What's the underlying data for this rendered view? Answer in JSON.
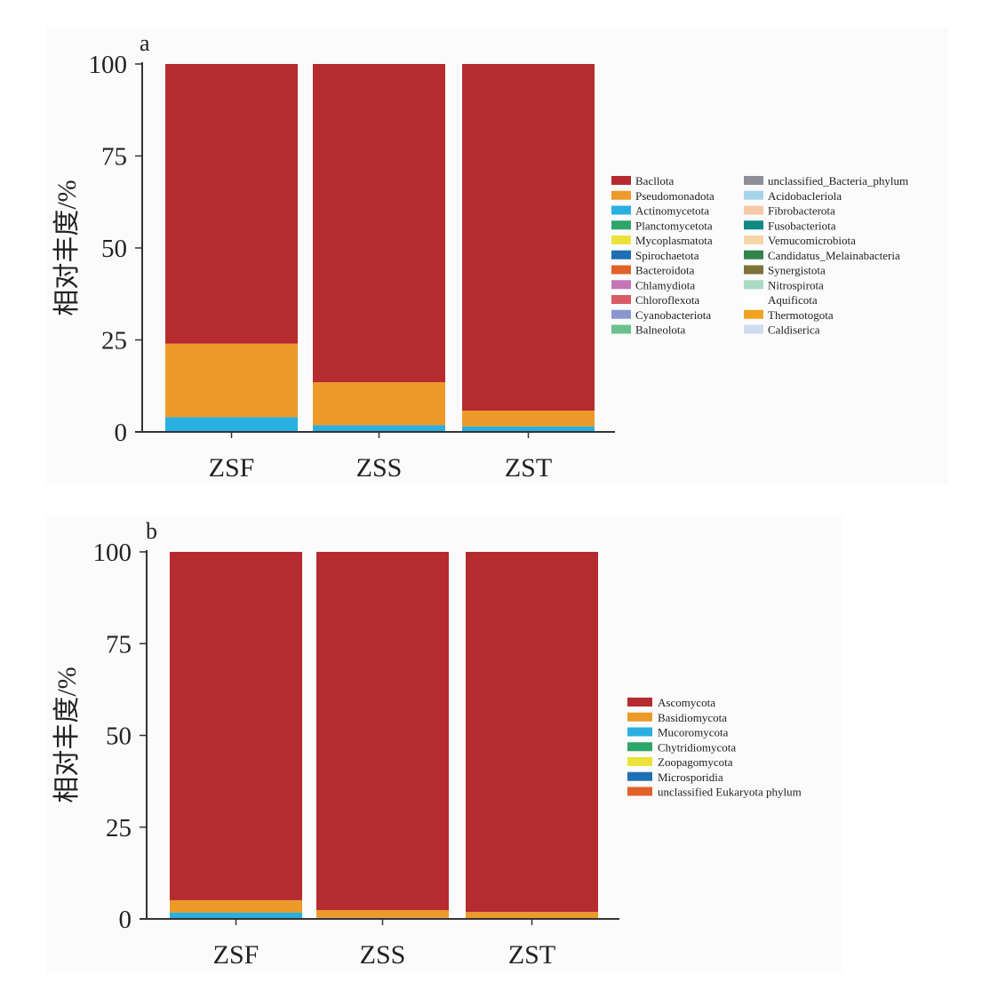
{
  "chart_data": [
    {
      "type": "bar",
      "stacked": true,
      "panel_label": "a",
      "ylabel": "相对丰度/%",
      "ylim": [
        0,
        100
      ],
      "yticks": [
        "0",
        "25",
        "50",
        "75",
        "100"
      ],
      "categories": [
        "ZSF",
        "ZSS",
        "ZST"
      ],
      "legend_position": "right",
      "series": [
        {
          "name": "Bacllota",
          "color": "#b52b30",
          "values": [
            76,
            86.5,
            94.2
          ]
        },
        {
          "name": "Pseudomonadota",
          "color": "#ec9a2a",
          "values": [
            20,
            11.7,
            4.3
          ]
        },
        {
          "name": "Actinomycetota",
          "color": "#2ab0e0",
          "values": [
            4,
            1.8,
            1.5
          ]
        },
        {
          "name": "Planctomycetota",
          "color": "#2ea66a",
          "values": [
            0,
            0,
            0
          ]
        },
        {
          "name": "Mycoplasmatota",
          "color": "#ece23a",
          "values": [
            0,
            0,
            0
          ]
        },
        {
          "name": "Spirochaetota",
          "color": "#1f6fb5",
          "values": [
            0,
            0,
            0
          ]
        },
        {
          "name": "Bacteroidota",
          "color": "#e0622a",
          "values": [
            0,
            0,
            0
          ]
        },
        {
          "name": "Chlamydiota",
          "color": "#c476b8",
          "values": [
            0,
            0,
            0
          ]
        },
        {
          "name": "Chloroflexota",
          "color": "#d85a64",
          "values": [
            0,
            0,
            0
          ]
        },
        {
          "name": "Cyanobacteriota",
          "color": "#8a97cf",
          "values": [
            0,
            0,
            0
          ]
        },
        {
          "name": "Balneolota",
          "color": "#6cc08e",
          "values": [
            0,
            0,
            0
          ]
        },
        {
          "name": "unclassified_Bacteria_phylum",
          "color": "#8c9096",
          "values": [
            0,
            0,
            0
          ]
        },
        {
          "name": "Acidobacleriola",
          "color": "#a6d4ea",
          "values": [
            0,
            0,
            0
          ]
        },
        {
          "name": "Fibrobacterota",
          "color": "#f5c9a6",
          "values": [
            0,
            0,
            0
          ]
        },
        {
          "name": "Fusobacteriota",
          "color": "#118a84",
          "values": [
            0,
            0,
            0
          ]
        },
        {
          "name": "Vemucomicrobiota",
          "color": "#f5d6a6",
          "values": [
            0,
            0,
            0
          ]
        },
        {
          "name": "Candidatus_Melainabacteria",
          "color": "#33834c",
          "values": [
            0,
            0,
            0
          ]
        },
        {
          "name": "Synergistota",
          "color": "#7d733a",
          "values": [
            0,
            0,
            0
          ]
        },
        {
          "name": "Nitrospirota",
          "color": "#a9dcc4",
          "values": [
            0,
            0,
            0
          ]
        },
        {
          "name": "Aquificota",
          "color": "#ffffff",
          "values": [
            0,
            0,
            0
          ]
        },
        {
          "name": "Thermotogota",
          "color": "#f0a220",
          "values": [
            0,
            0,
            0
          ]
        },
        {
          "name": "Caldiserica",
          "color": "#cfdcef",
          "values": [
            0,
            0,
            0
          ]
        }
      ]
    },
    {
      "type": "bar",
      "stacked": true,
      "panel_label": "b",
      "ylabel": "相对丰度/%",
      "ylim": [
        0,
        100
      ],
      "yticks": [
        "0",
        "25",
        "50",
        "75",
        "100"
      ],
      "categories": [
        "ZSF",
        "ZSS",
        "ZST"
      ],
      "legend_position": "right",
      "series": [
        {
          "name": "Ascomycota",
          "color": "#b52b30",
          "values": [
            94.9,
            97.6,
            98.1
          ]
        },
        {
          "name": "Basidiomycota",
          "color": "#ec9a2a",
          "values": [
            3.4,
            2.1,
            1.9
          ]
        },
        {
          "name": "Mucoromycota",
          "color": "#2ab0e0",
          "values": [
            1.7,
            0.3,
            0
          ]
        },
        {
          "name": "Chytridiomycota",
          "color": "#2ea66a",
          "values": [
            0,
            0,
            0
          ]
        },
        {
          "name": "Zoopagomycota",
          "color": "#ece23a",
          "values": [
            0,
            0,
            0
          ]
        },
        {
          "name": "Microsporidia",
          "color": "#1f6fb5",
          "values": [
            0,
            0,
            0
          ]
        },
        {
          "name": "unclassified Eukaryota phylum",
          "color": "#e0622a",
          "values": [
            0,
            0,
            0
          ]
        }
      ]
    }
  ]
}
